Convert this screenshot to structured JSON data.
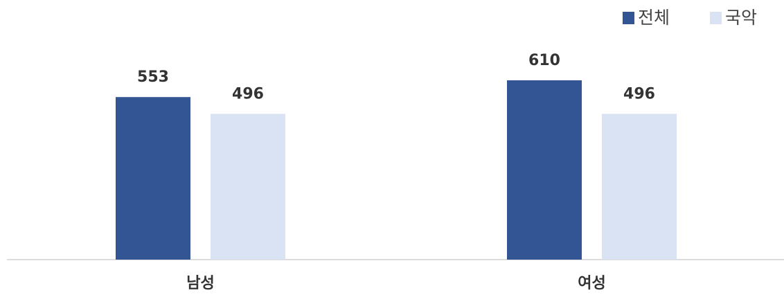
{
  "chart_data": {
    "type": "bar",
    "categories": [
      "남성",
      "여성"
    ],
    "series": [
      {
        "name": "전체",
        "color": "#335593",
        "values": [
          553,
          610
        ]
      },
      {
        "name": "국악",
        "color": "#dae3f3",
        "values": [
          496,
          496
        ]
      }
    ],
    "legend": "top-right"
  }
}
